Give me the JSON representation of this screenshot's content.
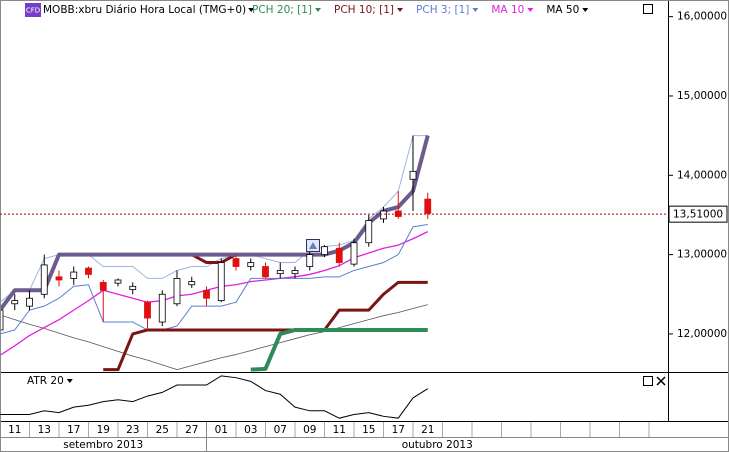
{
  "chart_data": [
    {
      "type": "candlestick",
      "badge": "CFD",
      "title": "MOBB:xbru Diário Hora Local (TMG+0)",
      "categories": [
        null,
        "11",
        null,
        "13",
        null,
        "17",
        null,
        "19",
        null,
        "23",
        null,
        "25",
        null,
        "27",
        null,
        "01",
        null,
        "03",
        null,
        "07",
        null,
        "09",
        null,
        "11",
        null,
        "15",
        null,
        "17",
        null,
        "21"
      ],
      "months": [
        "setembro 2013",
        "outubro 2013"
      ],
      "open": [
        12.05,
        12.38,
        12.35,
        12.5,
        12.72,
        12.7,
        12.83,
        12.65,
        12.64,
        12.56,
        12.4,
        12.15,
        12.38,
        12.62,
        12.55,
        12.42,
        12.95,
        12.85,
        12.85,
        12.76,
        12.76,
        12.85,
        13.0,
        13.08,
        12.88,
        13.15,
        13.45,
        13.55,
        13.95,
        13.7
      ],
      "high": [
        12.35,
        12.5,
        12.55,
        13.0,
        12.8,
        12.85,
        12.85,
        12.68,
        12.7,
        12.65,
        12.42,
        12.55,
        12.8,
        12.72,
        12.6,
        12.95,
        13.0,
        12.95,
        12.9,
        12.9,
        12.85,
        13.1,
        13.12,
        13.15,
        13.2,
        13.5,
        13.6,
        13.8,
        14.5,
        13.78
      ],
      "low": [
        12.0,
        12.3,
        12.3,
        12.45,
        12.6,
        12.62,
        12.7,
        12.15,
        12.6,
        12.5,
        12.05,
        12.1,
        12.35,
        12.58,
        12.35,
        12.4,
        12.8,
        12.8,
        12.7,
        12.7,
        12.7,
        12.8,
        12.97,
        12.85,
        12.85,
        13.1,
        13.4,
        13.45,
        13.55,
        13.45
      ],
      "close": [
        12.3,
        12.42,
        12.45,
        12.87,
        12.68,
        12.78,
        12.75,
        12.55,
        12.68,
        12.6,
        12.2,
        12.5,
        12.7,
        12.66,
        12.45,
        12.9,
        12.85,
        12.9,
        12.72,
        12.8,
        12.8,
        13.0,
        13.1,
        12.9,
        13.15,
        13.43,
        13.55,
        13.48,
        14.05,
        13.52
      ],
      "up_color": "#ffffff",
      "down_color": "#e01010",
      "ylim": [
        11.52,
        16.21
      ],
      "yticks": [
        {
          "value": 12,
          "label": "12,00000"
        },
        {
          "value": 13,
          "label": "13,00000"
        },
        {
          "value": 14,
          "label": "14,00000"
        },
        {
          "value": 15,
          "label": "15,00000"
        },
        {
          "value": 16,
          "label": "16,00000"
        }
      ],
      "last_price": {
        "value": 13.51,
        "label": "13,51000"
      },
      "last_price_color": "#b00000",
      "series": [
        {
          "name": "PCH 20; [1]",
          "color": "#2e8b57",
          "upper_color": "#6b5b8f",
          "width": 4,
          "upper": [
            12.3,
            12.55,
            12.55,
            12.55,
            13.0,
            13.0,
            13.0,
            13.0,
            13.0,
            13.0,
            13.0,
            13.0,
            13.0,
            13.0,
            13.0,
            13.0,
            13.0,
            13.0,
            13.0,
            13.0,
            13.0,
            13.0,
            13.0,
            13.05,
            13.15,
            13.4,
            13.55,
            13.6,
            13.8,
            14.5
          ],
          "lower": [
            null,
            null,
            null,
            null,
            null,
            null,
            null,
            null,
            null,
            null,
            null,
            null,
            null,
            null,
            null,
            null,
            null,
            11.55,
            11.56,
            12.0,
            12.05,
            12.05,
            12.05,
            12.05,
            12.05,
            12.05,
            12.05,
            12.05,
            12.05,
            12.05
          ]
        },
        {
          "name": "PCH 10; [1]",
          "color": "#7a1515",
          "upper_color": "#7a1515",
          "width": 3,
          "upper": [
            null,
            null,
            null,
            null,
            13.0,
            13.0,
            13.0,
            13.0,
            13.0,
            13.0,
            13.0,
            13.0,
            13.0,
            13.0,
            12.9,
            12.9,
            13.0,
            13.0,
            13.0,
            13.0,
            13.0,
            13.0,
            13.0,
            13.05,
            13.15,
            13.4,
            13.55,
            13.6,
            13.8,
            14.5
          ],
          "lower": [
            null,
            null,
            null,
            null,
            null,
            null,
            null,
            11.55,
            11.55,
            12.0,
            12.05,
            12.05,
            12.05,
            12.05,
            12.05,
            12.05,
            12.05,
            12.05,
            12.05,
            12.05,
            12.05,
            12.05,
            12.05,
            12.3,
            12.3,
            12.3,
            12.5,
            12.65,
            12.65,
            12.65
          ]
        },
        {
          "name": "PCH 3; [1]",
          "color": "#5a7fd0",
          "upper_color": "#9db4e8",
          "width": 1,
          "upper": [
            12.4,
            12.55,
            12.55,
            12.95,
            13.0,
            13.0,
            13.0,
            12.85,
            12.85,
            12.85,
            12.7,
            12.7,
            12.8,
            12.85,
            12.85,
            12.95,
            13.0,
            13.0,
            12.95,
            12.9,
            12.9,
            13.05,
            13.1,
            13.12,
            13.18,
            13.45,
            13.6,
            13.8,
            14.5,
            14.5
          ],
          "lower": [
            12.0,
            12.05,
            12.3,
            12.35,
            12.45,
            12.6,
            12.62,
            12.15,
            12.15,
            12.15,
            12.05,
            12.05,
            12.1,
            12.35,
            12.35,
            12.35,
            12.4,
            12.7,
            12.7,
            12.7,
            12.7,
            12.7,
            12.72,
            12.72,
            12.8,
            12.85,
            12.9,
            13.0,
            13.35,
            13.38
          ]
        },
        {
          "name": "MA 10",
          "color": "#e020e0",
          "width": 1.3,
          "values": [
            11.73,
            11.85,
            11.98,
            12.08,
            12.18,
            12.3,
            12.42,
            12.55,
            12.5,
            12.45,
            12.4,
            12.42,
            12.48,
            12.5,
            12.55,
            12.6,
            12.62,
            12.66,
            12.68,
            12.7,
            12.72,
            12.75,
            12.8,
            12.86,
            12.96,
            13.02,
            13.08,
            13.12,
            13.2,
            13.29
          ]
        },
        {
          "name": "MA 50",
          "color": "#000000",
          "line_color": "#555555",
          "width": 0.8,
          "values": [
            12.24,
            12.18,
            12.12,
            12.07,
            12.01,
            11.95,
            11.9,
            11.84,
            11.78,
            11.72,
            11.67,
            11.61,
            11.55,
            11.6,
            11.65,
            11.7,
            11.74,
            11.79,
            11.84,
            11.89,
            11.94,
            11.99,
            12.03,
            12.08,
            12.13,
            12.18,
            12.23,
            12.27,
            12.32,
            12.37
          ]
        }
      ]
    },
    {
      "type": "line",
      "title": "ATR 20",
      "color": "#000000",
      "values": [
        0.18,
        0.18,
        0.18,
        0.2,
        0.19,
        0.22,
        0.23,
        0.25,
        0.26,
        0.25,
        0.28,
        0.3,
        0.34,
        0.34,
        0.34,
        0.39,
        0.38,
        0.36,
        0.31,
        0.29,
        0.22,
        0.2,
        0.2,
        0.16,
        0.18,
        0.19,
        0.17,
        0.16,
        0.27,
        0.32
      ],
      "ylim": [
        0.15,
        0.4
      ]
    }
  ]
}
